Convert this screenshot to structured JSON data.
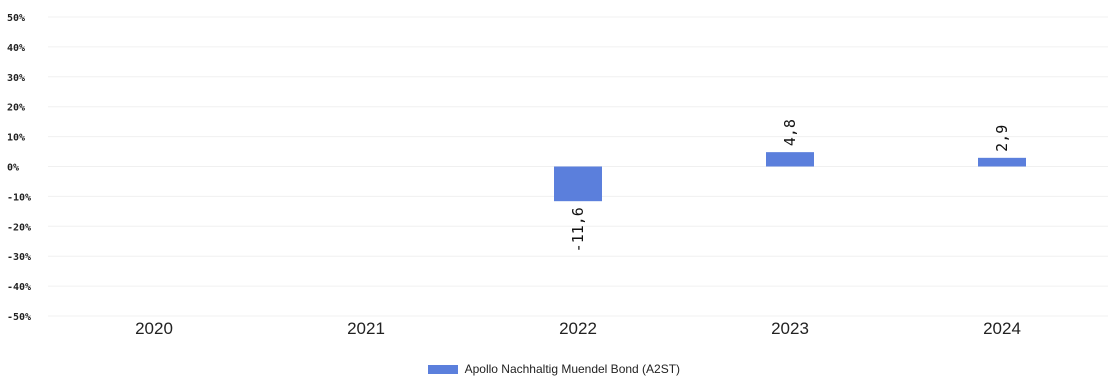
{
  "chart_data": {
    "type": "bar",
    "categories": [
      "2020",
      "2021",
      "2022",
      "2023",
      "2024"
    ],
    "series": [
      {
        "name": "Apollo Nachhaltig Muendel Bond (A2ST)",
        "values": [
          null,
          null,
          -11.6,
          4.8,
          2.9
        ],
        "labels": [
          "",
          "",
          "-11,6",
          "4,8",
          "2,9"
        ]
      }
    ],
    "ylim": [
      -50,
      50
    ],
    "yticks": [
      -50,
      -40,
      -30,
      -20,
      -10,
      0,
      10,
      20,
      30,
      40,
      50
    ],
    "ytick_labels": [
      "-50%",
      "-40%",
      "-30%",
      "-20%",
      "-10%",
      "0%",
      "10%",
      "20%",
      "30%",
      "40%",
      "50%"
    ],
    "grid": true,
    "legend": "bottom",
    "colors": {
      "bar": "#5b7fdc",
      "grid": "#f0f0f0"
    }
  }
}
